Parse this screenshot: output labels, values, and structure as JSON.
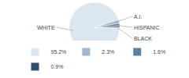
{
  "chart_data": {
    "type": "pie",
    "categories": [
      "WHITE",
      "A.I.",
      "HISPANIC",
      "BLACK"
    ],
    "values": [
      95.2,
      2.3,
      1.6,
      0.9
    ],
    "value_labels": [
      "95.2%",
      "2.3%",
      "1.6%",
      "0.9%"
    ],
    "colors": [
      "#dce6f1",
      "#9db8d2",
      "#5a7fa0",
      "#2e4e6e"
    ],
    "legend": "bottom"
  }
}
